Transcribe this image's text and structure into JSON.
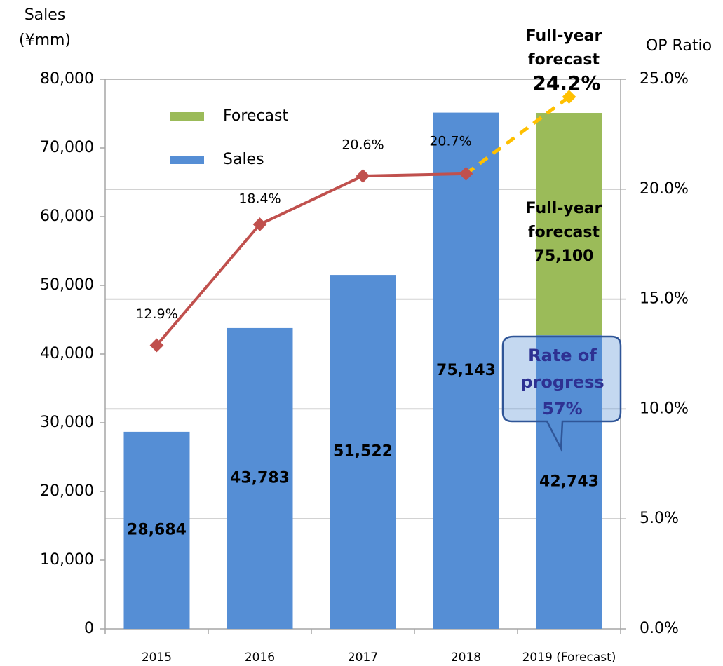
{
  "chart_data": {
    "type": "bar",
    "ylabel": "Sales",
    "ylabel_unit": "(¥mm)",
    "y2label": "OP Ratio",
    "categories": [
      "2015",
      "2016",
      "2017",
      "2018",
      "2019 (Forecast)"
    ],
    "series": [
      {
        "name": "Sales",
        "color": "#558ed5",
        "values": [
          28684,
          43783,
          51522,
          75143,
          42743
        ],
        "value_labels": [
          "28,684",
          "43,783",
          "51,522",
          "75,143",
          "42,743"
        ]
      },
      {
        "name": "Forecast",
        "color": "#9bbb59",
        "values": [
          null,
          null,
          null,
          null,
          32357
        ]
      },
      {
        "type": "line",
        "axis": "y2",
        "color": "#c0504d",
        "forecast_color": "#ffc000",
        "values": [
          12.9,
          18.4,
          20.6,
          20.7,
          24.2
        ],
        "value_labels": [
          "12.9%",
          "18.4%",
          "20.6%",
          "20.7%",
          "24.2%"
        ]
      }
    ],
    "annotations": [
      {
        "lines": [
          "Full-year",
          "forecast"
        ]
      },
      {
        "lines": [
          "Full-year",
          "forecast",
          "75,100"
        ]
      },
      {
        "lines": [
          "Rate of",
          "progress",
          "57%"
        ]
      }
    ],
    "ylim": [
      0,
      80000
    ],
    "yticks": [
      {
        "value": 0,
        "label": "0"
      },
      {
        "value": 10000,
        "label": "10,000"
      },
      {
        "value": 20000,
        "label": "20,000"
      },
      {
        "value": 30000,
        "label": "30,000"
      },
      {
        "value": 40000,
        "label": "40,000"
      },
      {
        "value": 50000,
        "label": "50,000"
      },
      {
        "value": 60000,
        "label": "60,000"
      },
      {
        "value": 70000,
        "label": "70,000"
      },
      {
        "value": 80000,
        "label": "80,000"
      }
    ],
    "y2lim": [
      0,
      25
    ],
    "y2ticks": [
      {
        "value": 0,
        "label": "0.0%"
      },
      {
        "value": 5,
        "label": "5.0%"
      },
      {
        "value": 10,
        "label": "10.0%"
      },
      {
        "value": 15,
        "label": "15.0%"
      },
      {
        "value": 20,
        "label": "20.0%"
      },
      {
        "value": 25,
        "label": "25.0%"
      }
    ],
    "grid": "y2"
  }
}
